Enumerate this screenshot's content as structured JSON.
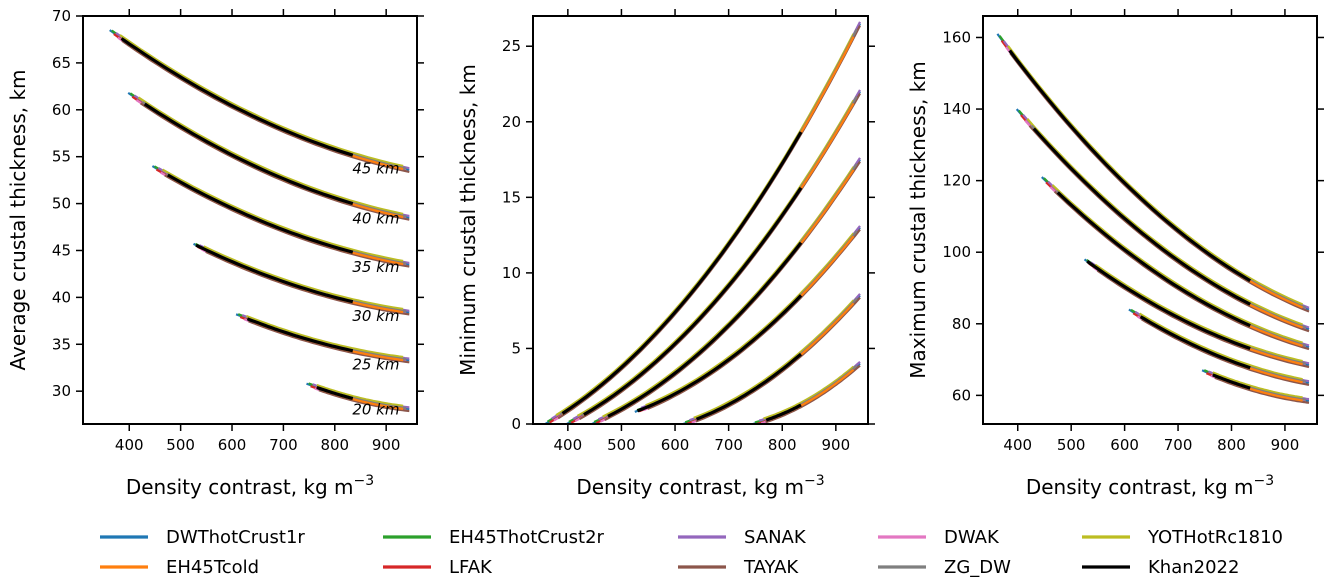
{
  "legend": {
    "placement": "bottom",
    "entries": [
      {
        "name": "DWThotCrust1r",
        "color": "#1f77b4"
      },
      {
        "name": "EH45ThotCrust2r",
        "color": "#2ca02c"
      },
      {
        "name": "SANAK",
        "color": "#9467bd"
      },
      {
        "name": "DWAK",
        "color": "#e377c2"
      },
      {
        "name": "YOTHotRc1810",
        "color": "#bcbd22"
      },
      {
        "name": "EH45Tcold",
        "color": "#ff7f0e"
      },
      {
        "name": "LFAK",
        "color": "#d62728"
      },
      {
        "name": "TAYAK",
        "color": "#8c564b"
      },
      {
        "name": "ZG_DW",
        "color": "#7f7f7f"
      },
      {
        "name": "Khan2022",
        "color": "#000000"
      }
    ]
  },
  "chart_data": [
    {
      "type": "line",
      "xlabel": "Density contrast, kg m",
      "xlabel_sup": "−3",
      "ylabel": "Average crustal thickness, km",
      "xlim": [
        310,
        960
      ],
      "ylim": [
        26.5,
        70
      ],
      "xticks": [
        "400",
        "500",
        "600",
        "700",
        "800",
        "900"
      ],
      "yticks": [
        "30",
        "35",
        "40",
        "45",
        "50",
        "55",
        "60",
        "65",
        "70"
      ],
      "grid": false,
      "annotations": [
        {
          "text": "45 km",
          "x": 880,
          "y": 53.2
        },
        {
          "text": "40 km",
          "x": 880,
          "y": 47.9
        },
        {
          "text": "35 km",
          "x": 880,
          "y": 42.7
        },
        {
          "text": "30 km",
          "x": 880,
          "y": 37.5
        },
        {
          "text": "25 km",
          "x": 880,
          "y": 32.3
        },
        {
          "text": "20 km",
          "x": 880,
          "y": 27.5
        }
      ],
      "families": [
        {
          "label": "45 km",
          "x_start": 362,
          "x_end": 945,
          "y_at_start": 68.5,
          "y_at_end": 53.6,
          "khan_x": [
            385,
            835
          ]
        },
        {
          "label": "40 km",
          "x_start": 398,
          "x_end": 945,
          "y_at_start": 61.8,
          "y_at_end": 48.5,
          "khan_x": [
            430,
            835
          ]
        },
        {
          "label": "35 km",
          "x_start": 445,
          "x_end": 945,
          "y_at_start": 54.0,
          "y_at_end": 43.5,
          "khan_x": [
            475,
            835
          ]
        },
        {
          "label": "30 km",
          "x_start": 525,
          "x_end": 945,
          "y_at_start": 45.7,
          "y_at_end": 38.4,
          "khan_x": [
            530,
            835
          ]
        },
        {
          "label": "25 km",
          "x_start": 608,
          "x_end": 945,
          "y_at_start": 38.2,
          "y_at_end": 33.3,
          "khan_x": [
            630,
            835
          ]
        },
        {
          "label": "20 km",
          "x_start": 745,
          "x_end": 945,
          "y_at_start": 30.8,
          "y_at_end": 28.1,
          "khan_x": [
            765,
            835
          ]
        }
      ]
    },
    {
      "type": "line",
      "xlabel": "Density contrast, kg m",
      "xlabel_sup": "−3",
      "ylabel": "Minimum crustal thickness, km",
      "xlim": [
        335,
        960
      ],
      "ylim": [
        0,
        27
      ],
      "xticks": [
        "400",
        "500",
        "600",
        "700",
        "800",
        "900"
      ],
      "yticks": [
        "0",
        "5",
        "10",
        "15",
        "20",
        "25"
      ],
      "grid": false,
      "families": [
        {
          "x_start": 358,
          "x_end": 945,
          "y_at_start": 0.0,
          "y_at_end": 26.5,
          "khan_x": [
            390,
            835
          ]
        },
        {
          "x_start": 398,
          "x_end": 945,
          "y_at_start": 0.0,
          "y_at_end": 22.0,
          "khan_x": [
            430,
            835
          ]
        },
        {
          "x_start": 445,
          "x_end": 945,
          "y_at_start": 0.0,
          "y_at_end": 17.5,
          "khan_x": [
            475,
            835
          ]
        },
        {
          "x_start": 525,
          "x_end": 945,
          "y_at_start": 0.8,
          "y_at_end": 13.0,
          "khan_x": [
            530,
            835
          ]
        },
        {
          "x_start": 615,
          "x_end": 945,
          "y_at_start": 0.0,
          "y_at_end": 8.5,
          "khan_x": [
            640,
            835
          ]
        },
        {
          "x_start": 745,
          "x_end": 945,
          "y_at_start": 0.0,
          "y_at_end": 4.0,
          "khan_x": [
            770,
            835
          ]
        }
      ]
    },
    {
      "type": "line",
      "xlabel": "Density contrast, kg m",
      "xlabel_sup": "−3",
      "ylabel": "Maximum crustal thickness, km",
      "xlim": [
        335,
        960
      ],
      "ylim": [
        52,
        166
      ],
      "xticks": [
        "400",
        "500",
        "600",
        "700",
        "800",
        "900"
      ],
      "yticks": [
        "60",
        "80",
        "100",
        "120",
        "140",
        "160"
      ],
      "grid": false,
      "families": [
        {
          "x_start": 362,
          "x_end": 945,
          "y_at_start": 161,
          "y_at_end": 84,
          "khan_x": [
            385,
            835
          ]
        },
        {
          "x_start": 398,
          "x_end": 945,
          "y_at_start": 140,
          "y_at_end": 78.5,
          "khan_x": [
            430,
            835
          ]
        },
        {
          "x_start": 445,
          "x_end": 945,
          "y_at_start": 121,
          "y_at_end": 73.5,
          "khan_x": [
            475,
            835
          ]
        },
        {
          "x_start": 525,
          "x_end": 945,
          "y_at_start": 98,
          "y_at_end": 68.5,
          "khan_x": [
            530,
            835
          ]
        },
        {
          "x_start": 608,
          "x_end": 945,
          "y_at_start": 84,
          "y_at_end": 63.5,
          "khan_x": [
            630,
            835
          ]
        },
        {
          "x_start": 745,
          "x_end": 945,
          "y_at_start": 67,
          "y_at_end": 58.5,
          "khan_x": [
            765,
            835
          ]
        }
      ]
    }
  ]
}
